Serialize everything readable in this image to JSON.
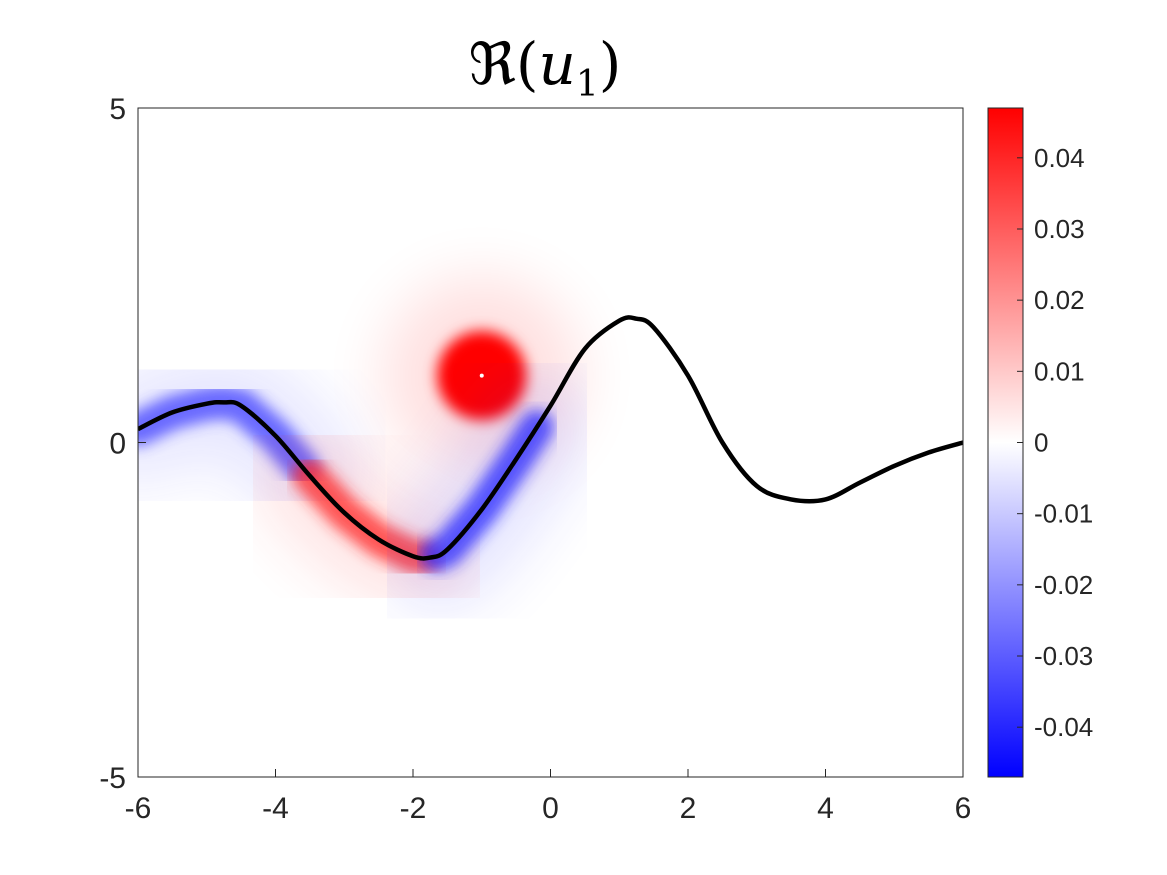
{
  "chart_data": {
    "type": "heatmap",
    "title": "ℜ(u₁)",
    "title_parts": {
      "symbol": "ℜ",
      "open": "(",
      "var": "u",
      "sub": "1",
      "close": ")"
    },
    "xlabel": "",
    "ylabel": "",
    "xlim": [
      -6,
      6
    ],
    "ylim": [
      -5,
      5
    ],
    "x_ticks": [
      -6,
      -4,
      -2,
      0,
      2,
      4,
      6
    ],
    "x_tick_labels": [
      "-6",
      "-4",
      "-2",
      "0",
      "2",
      "4",
      "6"
    ],
    "y_ticks": [
      5,
      0,
      -5
    ],
    "y_tick_labels": [
      "5",
      "0",
      "-5"
    ],
    "grid": false,
    "colorbar": {
      "range": [
        -0.047,
        0.047
      ],
      "ticks": [
        0.04,
        0.03,
        0.02,
        0.01,
        0,
        -0.01,
        -0.02,
        -0.03,
        -0.04
      ],
      "tick_labels": [
        "0.04",
        "0.03",
        "0.02",
        "0.01",
        "0",
        "-0.01",
        "-0.02",
        "-0.03",
        "-0.04"
      ],
      "colormap": [
        "#0000ff",
        "#ffffff",
        "#ff0000"
      ],
      "placement": "right"
    },
    "curve": {
      "color": "#000000",
      "x": [
        -6,
        -5.5,
        -5,
        -4.75,
        -4.5,
        -4,
        -3.5,
        -3,
        -2.5,
        -2,
        -1.75,
        -1.5,
        -1,
        -0.5,
        0,
        0.5,
        1,
        1.25,
        1.5,
        2,
        2.5,
        3,
        3.5,
        4,
        4.5,
        5,
        5.5,
        6
      ],
      "y": [
        0.2,
        0.45,
        0.58,
        0.6,
        0.55,
        0.1,
        -0.5,
        -1.05,
        -1.45,
        -1.7,
        -1.72,
        -1.6,
        -1.0,
        -0.25,
        0.55,
        1.4,
        1.82,
        1.85,
        1.72,
        1.0,
        0.0,
        -0.65,
        -0.85,
        -0.85,
        -0.6,
        -0.35,
        -0.15,
        0.0
      ]
    },
    "point_source": {
      "x": -1.0,
      "y": 1.0
    },
    "features": [
      {
        "kind": "disk",
        "x": -1.0,
        "y": 1.0,
        "radius": 0.65,
        "value": 0.047
      },
      {
        "kind": "band",
        "x0": -6.0,
        "x1": -3.6,
        "value": -0.035
      },
      {
        "kind": "band",
        "x0": -3.5,
        "x1": -1.85,
        "value": 0.04
      },
      {
        "kind": "band",
        "x0": -1.65,
        "x1": -0.2,
        "value": -0.04
      }
    ]
  }
}
